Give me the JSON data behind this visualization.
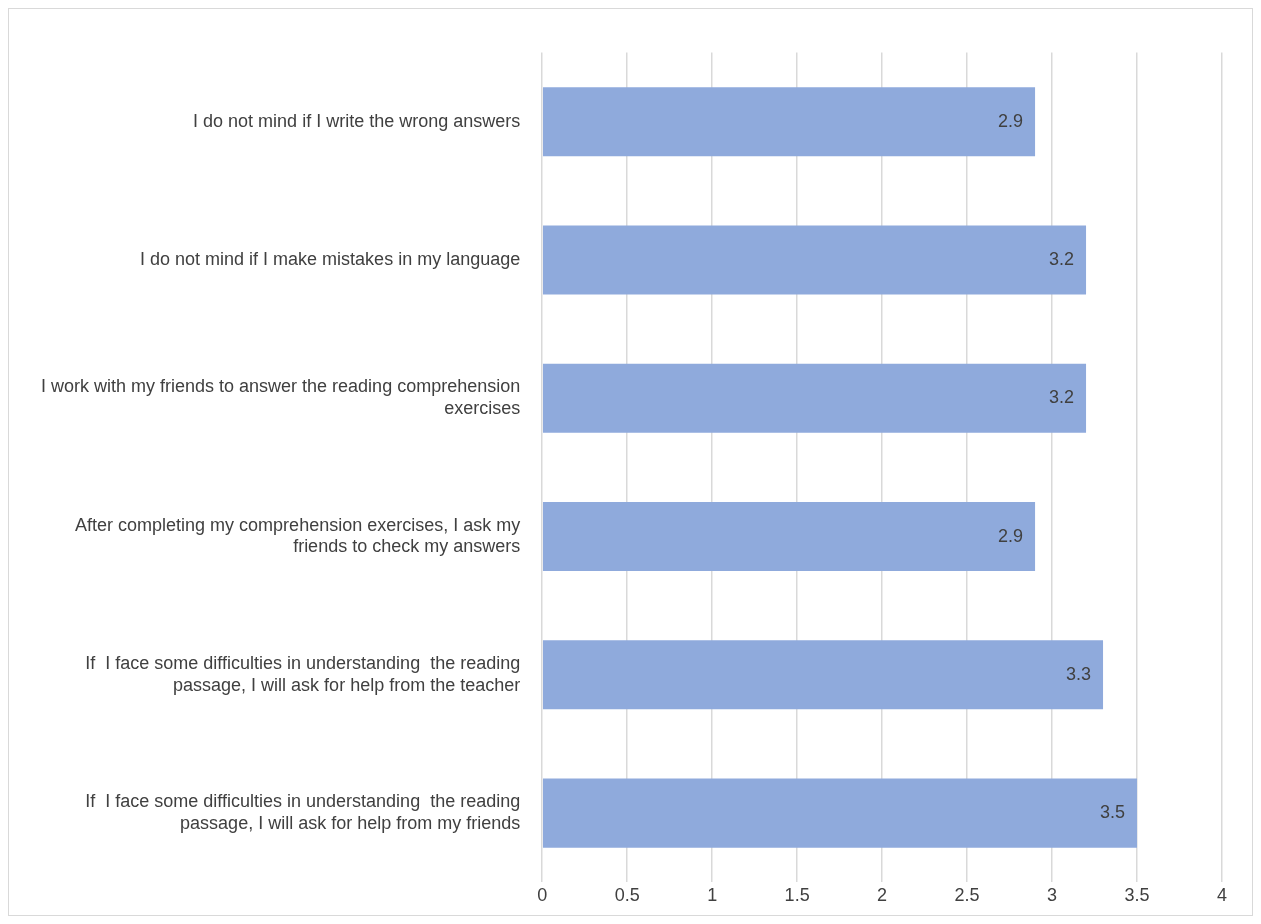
{
  "chart_data": {
    "type": "bar",
    "orientation": "horizontal",
    "categories": [
      "I do not mind if I write the wrong answers",
      "I do not mind if I make mistakes in my language",
      "I work with my friends to answer the reading comprehension exercises",
      "After completing my comprehension exercises, I ask my friends to check my answers",
      "If  I face some difficulties in understanding  the reading passage, I will ask for help from the teacher",
      "If  I face some difficulties in understanding  the reading passage, I will ask for help from my friends"
    ],
    "values": [
      2.9,
      3.2,
      3.2,
      2.9,
      3.3,
      3.5
    ],
    "color": "#8faadc",
    "xlim": [
      0,
      4
    ],
    "xticks": [
      0,
      0.5,
      1,
      1.5,
      2,
      2.5,
      3,
      3.5,
      4
    ],
    "grid": "x",
    "data_labels": true,
    "legend": false
  }
}
